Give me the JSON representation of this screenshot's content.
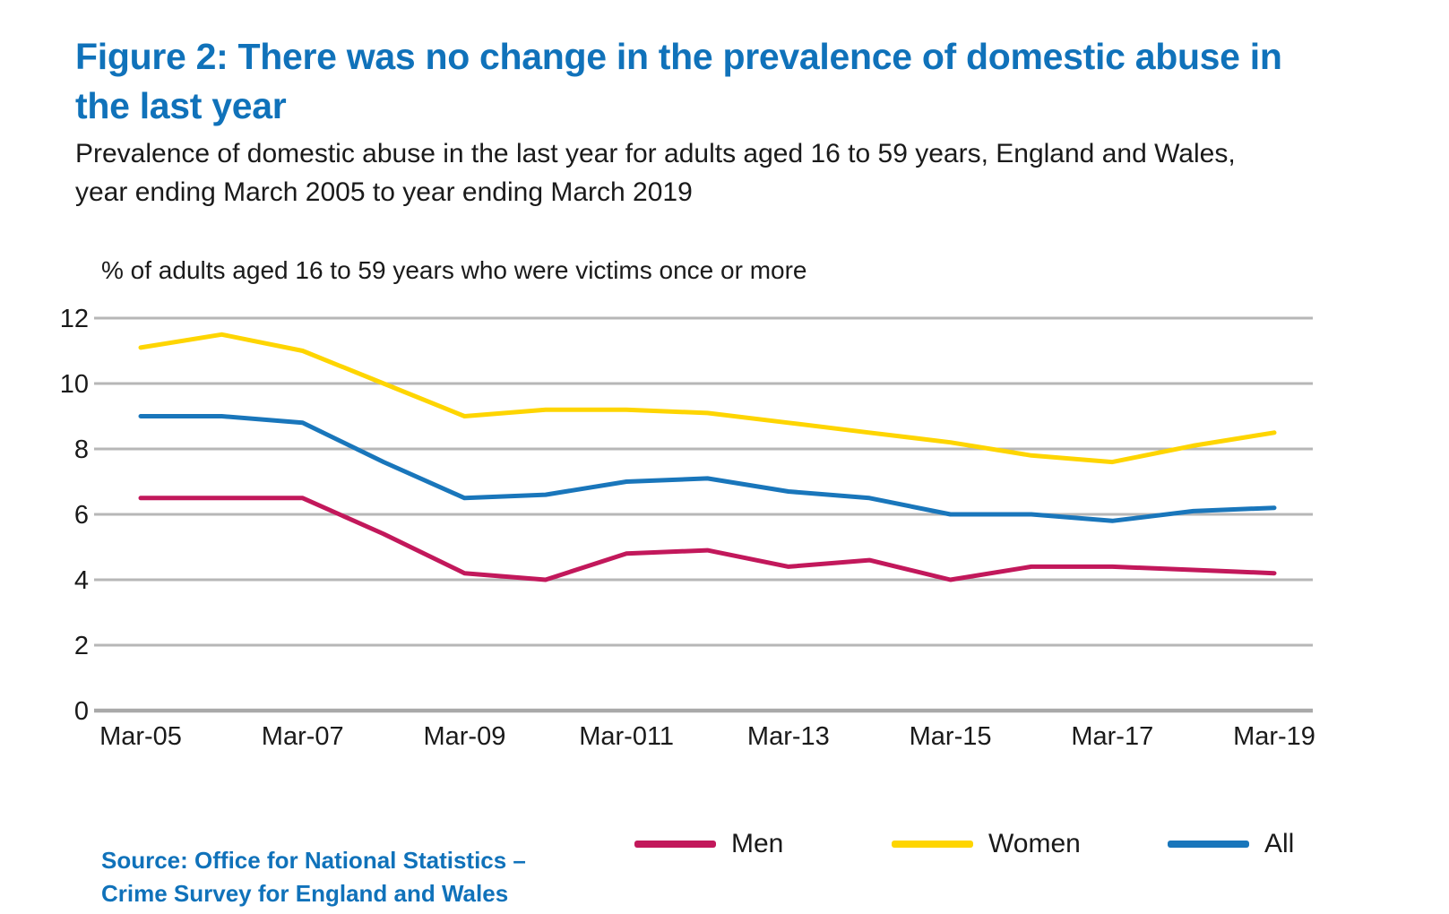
{
  "figure": {
    "title_lines": [
      "Figure 2: There was no change in the prevalence of domestic abuse in",
      "the last year"
    ],
    "subtitle_lines": [
      "Prevalence of domestic abuse in the last year for adults aged 16 to 59 years, England and Wales,",
      "year ending March 2005 to year ending March 2019"
    ],
    "source_lines": [
      "Source: Office for National Statistics –",
      "Crime Survey for England and Wales"
    ]
  },
  "colors": {
    "title_blue": "#1072ba",
    "men_line": "#c2185b",
    "women_line": "#fed500",
    "all_line": "#1976bb",
    "gridline": "#b7b7b7",
    "axis_line": "#a9a9a9"
  },
  "chart_data": {
    "type": "line",
    "title": "Figure 2: There was no change in the prevalence of domestic abuse in the last year",
    "axis_title": "% of adults aged 16 to 59 years who were victims once or more",
    "xlabel": "",
    "ylabel": "% of adults aged 16 to 59 years who were victims once or more",
    "x": [
      2005,
      2006,
      2007,
      2008,
      2009,
      2010,
      2011,
      2012,
      2013,
      2014,
      2015,
      2016,
      2017,
      2018,
      2019
    ],
    "x_tick_labels": [
      "Mar-05",
      "Mar-07",
      "Mar-09",
      "Mar-011",
      "Mar-13",
      "Mar-15",
      "Mar-17",
      "Mar-19"
    ],
    "ylim": [
      0,
      12
    ],
    "yticks": [
      0,
      2,
      4,
      6,
      8,
      10,
      12
    ],
    "grid": true,
    "legend_position": "bottom",
    "series": [
      {
        "name": "Men",
        "color": "#c2185b",
        "values": [
          6.5,
          6.5,
          6.5,
          5.4,
          4.2,
          4.0,
          4.8,
          4.9,
          4.4,
          4.6,
          4.0,
          4.4,
          4.4,
          4.3,
          4.2
        ]
      },
      {
        "name": "Women",
        "color": "#fed500",
        "values": [
          11.1,
          11.5,
          11.0,
          10.0,
          9.0,
          9.2,
          9.2,
          9.1,
          8.8,
          8.5,
          8.2,
          7.8,
          7.6,
          8.1,
          8.5
        ]
      },
      {
        "name": "All",
        "color": "#1976bb",
        "values": [
          9.0,
          9.0,
          8.8,
          7.6,
          6.5,
          6.6,
          7.0,
          7.1,
          6.7,
          6.5,
          6.0,
          6.0,
          5.8,
          6.1,
          6.2
        ]
      }
    ]
  }
}
